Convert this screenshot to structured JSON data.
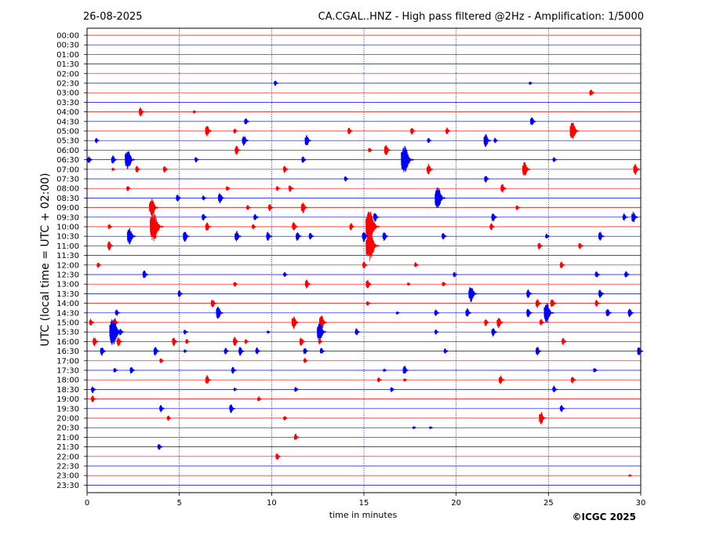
{
  "header": {
    "date": "26-08-2025",
    "title": "CA.CGAL..HNZ - High pass filtered @2Hz - Amplification: 1/5000"
  },
  "footer": {
    "copyright": "©ICGC 2025"
  },
  "chart_data": {
    "type": "line",
    "title": "CA.CGAL..HNZ - High pass filtered @2Hz - Amplification: 1/5000",
    "xlabel": "time in minutes",
    "ylabel": "UTC (local time = UTC + 02:00)",
    "xlim": [
      0,
      30
    ],
    "xticks": [
      0,
      5,
      10,
      15,
      20,
      25,
      30
    ],
    "vertical_gridlines": [
      5,
      10,
      15,
      20,
      25
    ],
    "colors": {
      "even_rows": "#ff0000",
      "odd_rows": "#0000ff"
    },
    "rows": [
      "00:00",
      "00:30",
      "01:00",
      "01:30",
      "02:00",
      "02:30",
      "03:00",
      "03:30",
      "04:00",
      "04:30",
      "05:00",
      "05:30",
      "06:00",
      "06:30",
      "07:00",
      "07:30",
      "08:00",
      "08:30",
      "09:00",
      "09:30",
      "10:00",
      "10:30",
      "11:00",
      "11:30",
      "12:00",
      "12:30",
      "13:00",
      "13:30",
      "14:00",
      "14:30",
      "15:00",
      "15:30",
      "16:00",
      "16:30",
      "17:00",
      "17:30",
      "18:00",
      "18:30",
      "19:00",
      "19:30",
      "20:00",
      "20:30",
      "21:00",
      "21:30",
      "22:00",
      "22:30",
      "23:00",
      "23:30"
    ],
    "events": [
      {
        "row": "02:30",
        "t": 10.2,
        "amp": 0.3
      },
      {
        "row": "02:30",
        "t": 24.0,
        "amp": 0.2
      },
      {
        "row": "03:00",
        "t": 27.3,
        "amp": 0.4
      },
      {
        "row": "04:00",
        "t": 2.9,
        "amp": 0.5
      },
      {
        "row": "04:00",
        "t": 5.8,
        "amp": 0.2
      },
      {
        "row": "04:30",
        "t": 8.6,
        "amp": 0.4
      },
      {
        "row": "04:30",
        "t": 24.1,
        "amp": 0.5
      },
      {
        "row": "05:00",
        "t": 6.5,
        "amp": 0.6
      },
      {
        "row": "05:00",
        "t": 8.0,
        "amp": 0.3
      },
      {
        "row": "05:00",
        "t": 14.2,
        "amp": 0.4
      },
      {
        "row": "05:00",
        "t": 17.6,
        "amp": 0.4
      },
      {
        "row": "05:00",
        "t": 19.5,
        "amp": 0.4
      },
      {
        "row": "05:00",
        "t": 26.3,
        "amp": 1.0
      },
      {
        "row": "05:30",
        "t": 0.5,
        "amp": 0.3
      },
      {
        "row": "05:30",
        "t": 8.5,
        "amp": 0.6
      },
      {
        "row": "05:30",
        "t": 11.9,
        "amp": 0.6
      },
      {
        "row": "05:30",
        "t": 18.5,
        "amp": 0.3
      },
      {
        "row": "05:30",
        "t": 21.6,
        "amp": 0.7
      },
      {
        "row": "05:30",
        "t": 22.1,
        "amp": 0.3
      },
      {
        "row": "06:00",
        "t": 8.1,
        "amp": 0.5
      },
      {
        "row": "06:00",
        "t": 15.3,
        "amp": 0.3
      },
      {
        "row": "06:00",
        "t": 16.2,
        "amp": 0.6
      },
      {
        "row": "06:30",
        "t": 0.1,
        "amp": 0.4
      },
      {
        "row": "06:30",
        "t": 1.4,
        "amp": 0.5
      },
      {
        "row": "06:30",
        "t": 2.2,
        "amp": 1.1
      },
      {
        "row": "06:30",
        "t": 5.9,
        "amp": 0.3
      },
      {
        "row": "06:30",
        "t": 11.7,
        "amp": 0.4
      },
      {
        "row": "06:30",
        "t": 17.2,
        "amp": 1.5
      },
      {
        "row": "06:30",
        "t": 25.3,
        "amp": 0.3
      },
      {
        "row": "07:00",
        "t": 1.4,
        "amp": 0.2
      },
      {
        "row": "07:00",
        "t": 2.7,
        "amp": 0.4
      },
      {
        "row": "07:00",
        "t": 4.2,
        "amp": 0.4
      },
      {
        "row": "07:00",
        "t": 10.7,
        "amp": 0.4
      },
      {
        "row": "07:00",
        "t": 18.5,
        "amp": 0.6
      },
      {
        "row": "07:00",
        "t": 23.7,
        "amp": 0.8
      },
      {
        "row": "07:00",
        "t": 29.7,
        "amp": 0.6
      },
      {
        "row": "07:30",
        "t": 14.0,
        "amp": 0.3
      },
      {
        "row": "07:30",
        "t": 21.6,
        "amp": 0.4
      },
      {
        "row": "08:00",
        "t": 2.2,
        "amp": 0.3
      },
      {
        "row": "08:00",
        "t": 7.6,
        "amp": 0.3
      },
      {
        "row": "08:00",
        "t": 10.3,
        "amp": 0.3
      },
      {
        "row": "08:00",
        "t": 11.0,
        "amp": 0.4
      },
      {
        "row": "08:00",
        "t": 22.5,
        "amp": 0.5
      },
      {
        "row": "08:30",
        "t": 4.9,
        "amp": 0.4
      },
      {
        "row": "08:30",
        "t": 6.3,
        "amp": 0.3
      },
      {
        "row": "08:30",
        "t": 7.2,
        "amp": 0.6
      },
      {
        "row": "08:30",
        "t": 19.0,
        "amp": 1.2
      },
      {
        "row": "09:00",
        "t": 3.5,
        "amp": 1.0
      },
      {
        "row": "09:00",
        "t": 8.7,
        "amp": 0.3
      },
      {
        "row": "09:00",
        "t": 9.9,
        "amp": 0.4
      },
      {
        "row": "09:00",
        "t": 11.7,
        "amp": 0.6
      },
      {
        "row": "09:00",
        "t": 23.3,
        "amp": 0.3
      },
      {
        "row": "09:30",
        "t": 6.3,
        "amp": 0.4
      },
      {
        "row": "09:30",
        "t": 9.1,
        "amp": 0.4
      },
      {
        "row": "09:30",
        "t": 15.6,
        "amp": 0.5
      },
      {
        "row": "09:30",
        "t": 22.0,
        "amp": 0.5
      },
      {
        "row": "09:30",
        "t": 29.1,
        "amp": 0.4
      },
      {
        "row": "09:30",
        "t": 29.6,
        "amp": 0.6
      },
      {
        "row": "10:00",
        "t": 1.2,
        "amp": 0.3
      },
      {
        "row": "10:00",
        "t": 3.6,
        "amp": 1.6
      },
      {
        "row": "10:00",
        "t": 6.5,
        "amp": 0.5
      },
      {
        "row": "10:00",
        "t": 9.0,
        "amp": 0.3
      },
      {
        "row": "10:00",
        "t": 11.2,
        "amp": 0.5
      },
      {
        "row": "10:00",
        "t": 14.3,
        "amp": 0.4
      },
      {
        "row": "10:00",
        "t": 15.3,
        "amp": 1.7
      },
      {
        "row": "10:00",
        "t": 21.9,
        "amp": 0.4
      },
      {
        "row": "10:30",
        "t": 2.3,
        "amp": 0.9
      },
      {
        "row": "10:30",
        "t": 5.3,
        "amp": 0.6
      },
      {
        "row": "10:30",
        "t": 8.1,
        "amp": 0.6
      },
      {
        "row": "10:30",
        "t": 9.8,
        "amp": 0.5
      },
      {
        "row": "10:30",
        "t": 11.4,
        "amp": 0.5
      },
      {
        "row": "10:30",
        "t": 12.1,
        "amp": 0.4
      },
      {
        "row": "10:30",
        "t": 15.0,
        "amp": 0.6
      },
      {
        "row": "10:30",
        "t": 16.1,
        "amp": 0.5
      },
      {
        "row": "10:30",
        "t": 19.3,
        "amp": 0.4
      },
      {
        "row": "10:30",
        "t": 24.9,
        "amp": 0.3
      },
      {
        "row": "10:30",
        "t": 27.8,
        "amp": 0.5
      },
      {
        "row": "11:00",
        "t": 1.2,
        "amp": 0.5
      },
      {
        "row": "11:00",
        "t": 15.3,
        "amp": 1.6
      },
      {
        "row": "11:00",
        "t": 24.5,
        "amp": 0.4
      },
      {
        "row": "11:00",
        "t": 26.7,
        "amp": 0.4
      },
      {
        "row": "12:00",
        "t": 0.6,
        "amp": 0.3
      },
      {
        "row": "12:00",
        "t": 15.0,
        "amp": 0.4
      },
      {
        "row": "12:00",
        "t": 17.8,
        "amp": 0.3
      },
      {
        "row": "12:00",
        "t": 25.7,
        "amp": 0.4
      },
      {
        "row": "12:30",
        "t": 3.1,
        "amp": 0.5
      },
      {
        "row": "12:30",
        "t": 10.7,
        "amp": 0.3
      },
      {
        "row": "12:30",
        "t": 19.9,
        "amp": 0.3
      },
      {
        "row": "12:30",
        "t": 27.6,
        "amp": 0.4
      },
      {
        "row": "12:30",
        "t": 29.2,
        "amp": 0.4
      },
      {
        "row": "13:00",
        "t": 8.0,
        "amp": 0.3
      },
      {
        "row": "13:00",
        "t": 11.9,
        "amp": 0.5
      },
      {
        "row": "13:00",
        "t": 15.2,
        "amp": 0.5
      },
      {
        "row": "13:00",
        "t": 17.4,
        "amp": 0.2
      },
      {
        "row": "13:00",
        "t": 19.3,
        "amp": 0.3
      },
      {
        "row": "13:30",
        "t": 5.0,
        "amp": 0.4
      },
      {
        "row": "13:30",
        "t": 20.8,
        "amp": 0.9
      },
      {
        "row": "13:30",
        "t": 23.9,
        "amp": 0.5
      },
      {
        "row": "13:30",
        "t": 27.8,
        "amp": 0.5
      },
      {
        "row": "14:00",
        "t": 6.8,
        "amp": 0.5
      },
      {
        "row": "14:00",
        "t": 15.2,
        "amp": 0.3
      },
      {
        "row": "14:00",
        "t": 24.4,
        "amp": 0.5
      },
      {
        "row": "14:00",
        "t": 25.2,
        "amp": 0.5
      },
      {
        "row": "14:00",
        "t": 27.6,
        "amp": 0.4
      },
      {
        "row": "14:30",
        "t": 1.6,
        "amp": 0.4
      },
      {
        "row": "14:30",
        "t": 7.1,
        "amp": 0.7
      },
      {
        "row": "14:30",
        "t": 16.8,
        "amp": 0.2
      },
      {
        "row": "14:30",
        "t": 18.9,
        "amp": 0.4
      },
      {
        "row": "14:30",
        "t": 20.6,
        "amp": 0.5
      },
      {
        "row": "14:30",
        "t": 23.9,
        "amp": 0.5
      },
      {
        "row": "14:30",
        "t": 24.9,
        "amp": 1.1
      },
      {
        "row": "14:30",
        "t": 28.2,
        "amp": 0.5
      },
      {
        "row": "14:30",
        "t": 29.4,
        "amp": 0.5
      },
      {
        "row": "15:00",
        "t": 0.2,
        "amp": 0.4
      },
      {
        "row": "15:00",
        "t": 1.5,
        "amp": 0.5
      },
      {
        "row": "15:00",
        "t": 11.2,
        "amp": 0.7
      },
      {
        "row": "15:00",
        "t": 12.7,
        "amp": 0.8
      },
      {
        "row": "15:00",
        "t": 21.6,
        "amp": 0.4
      },
      {
        "row": "15:00",
        "t": 22.3,
        "amp": 0.6
      },
      {
        "row": "15:00",
        "t": 24.6,
        "amp": 0.4
      },
      {
        "row": "15:30",
        "t": 1.4,
        "amp": 1.5
      },
      {
        "row": "15:30",
        "t": 1.8,
        "amp": 0.4
      },
      {
        "row": "15:30",
        "t": 5.3,
        "amp": 0.3
      },
      {
        "row": "15:30",
        "t": 9.8,
        "amp": 0.2
      },
      {
        "row": "15:30",
        "t": 12.6,
        "amp": 1.0
      },
      {
        "row": "15:30",
        "t": 14.6,
        "amp": 0.4
      },
      {
        "row": "15:30",
        "t": 18.9,
        "amp": 0.3
      },
      {
        "row": "15:30",
        "t": 22.0,
        "amp": 0.5
      },
      {
        "row": "16:00",
        "t": 0.4,
        "amp": 0.5
      },
      {
        "row": "16:00",
        "t": 1.7,
        "amp": 0.5
      },
      {
        "row": "16:00",
        "t": 4.7,
        "amp": 0.5
      },
      {
        "row": "16:00",
        "t": 5.4,
        "amp": 0.3
      },
      {
        "row": "16:00",
        "t": 8.0,
        "amp": 0.5
      },
      {
        "row": "16:00",
        "t": 8.6,
        "amp": 0.3
      },
      {
        "row": "16:00",
        "t": 11.6,
        "amp": 0.5
      },
      {
        "row": "16:00",
        "t": 12.6,
        "amp": 0.3
      },
      {
        "row": "16:00",
        "t": 25.8,
        "amp": 0.4
      },
      {
        "row": "16:30",
        "t": 0.8,
        "amp": 0.5
      },
      {
        "row": "16:30",
        "t": 3.7,
        "amp": 0.5
      },
      {
        "row": "16:30",
        "t": 5.3,
        "amp": 0.2
      },
      {
        "row": "16:30",
        "t": 7.5,
        "amp": 0.4
      },
      {
        "row": "16:30",
        "t": 8.3,
        "amp": 0.5
      },
      {
        "row": "16:30",
        "t": 9.2,
        "amp": 0.4
      },
      {
        "row": "16:30",
        "t": 11.8,
        "amp": 0.4
      },
      {
        "row": "16:30",
        "t": 12.7,
        "amp": 0.4
      },
      {
        "row": "16:30",
        "t": 19.4,
        "amp": 0.3
      },
      {
        "row": "16:30",
        "t": 24.4,
        "amp": 0.5
      },
      {
        "row": "16:30",
        "t": 29.9,
        "amp": 0.5
      },
      {
        "row": "17:00",
        "t": 4.0,
        "amp": 0.3
      },
      {
        "row": "17:00",
        "t": 11.8,
        "amp": 0.3
      },
      {
        "row": "17:30",
        "t": 1.5,
        "amp": 0.3
      },
      {
        "row": "17:30",
        "t": 2.4,
        "amp": 0.4
      },
      {
        "row": "17:30",
        "t": 7.9,
        "amp": 0.4
      },
      {
        "row": "17:30",
        "t": 16.1,
        "amp": 0.2
      },
      {
        "row": "17:30",
        "t": 17.2,
        "amp": 0.5
      },
      {
        "row": "17:30",
        "t": 27.5,
        "amp": 0.3
      },
      {
        "row": "18:00",
        "t": 6.5,
        "amp": 0.5
      },
      {
        "row": "18:00",
        "t": 15.8,
        "amp": 0.3
      },
      {
        "row": "18:00",
        "t": 17.2,
        "amp": 0.2
      },
      {
        "row": "18:00",
        "t": 22.4,
        "amp": 0.5
      },
      {
        "row": "18:00",
        "t": 26.3,
        "amp": 0.4
      },
      {
        "row": "18:30",
        "t": 0.3,
        "amp": 0.4
      },
      {
        "row": "18:30",
        "t": 8.0,
        "amp": 0.2
      },
      {
        "row": "18:30",
        "t": 11.3,
        "amp": 0.3
      },
      {
        "row": "18:30",
        "t": 16.5,
        "amp": 0.3
      },
      {
        "row": "18:30",
        "t": 25.3,
        "amp": 0.4
      },
      {
        "row": "19:00",
        "t": 0.3,
        "amp": 0.4
      },
      {
        "row": "19:00",
        "t": 9.3,
        "amp": 0.3
      },
      {
        "row": "19:30",
        "t": 4.0,
        "amp": 0.4
      },
      {
        "row": "19:30",
        "t": 7.8,
        "amp": 0.5
      },
      {
        "row": "19:30",
        "t": 25.7,
        "amp": 0.4
      },
      {
        "row": "20:00",
        "t": 4.4,
        "amp": 0.3
      },
      {
        "row": "20:00",
        "t": 10.7,
        "amp": 0.3
      },
      {
        "row": "20:00",
        "t": 24.6,
        "amp": 0.7
      },
      {
        "row": "20:30",
        "t": 17.7,
        "amp": 0.2
      },
      {
        "row": "20:30",
        "t": 18.6,
        "amp": 0.2
      },
      {
        "row": "21:00",
        "t": 11.3,
        "amp": 0.4
      },
      {
        "row": "21:30",
        "t": 3.9,
        "amp": 0.4
      },
      {
        "row": "22:00",
        "t": 10.3,
        "amp": 0.4
      },
      {
        "row": "23:00",
        "t": 29.4,
        "amp": 0.15
      }
    ]
  }
}
